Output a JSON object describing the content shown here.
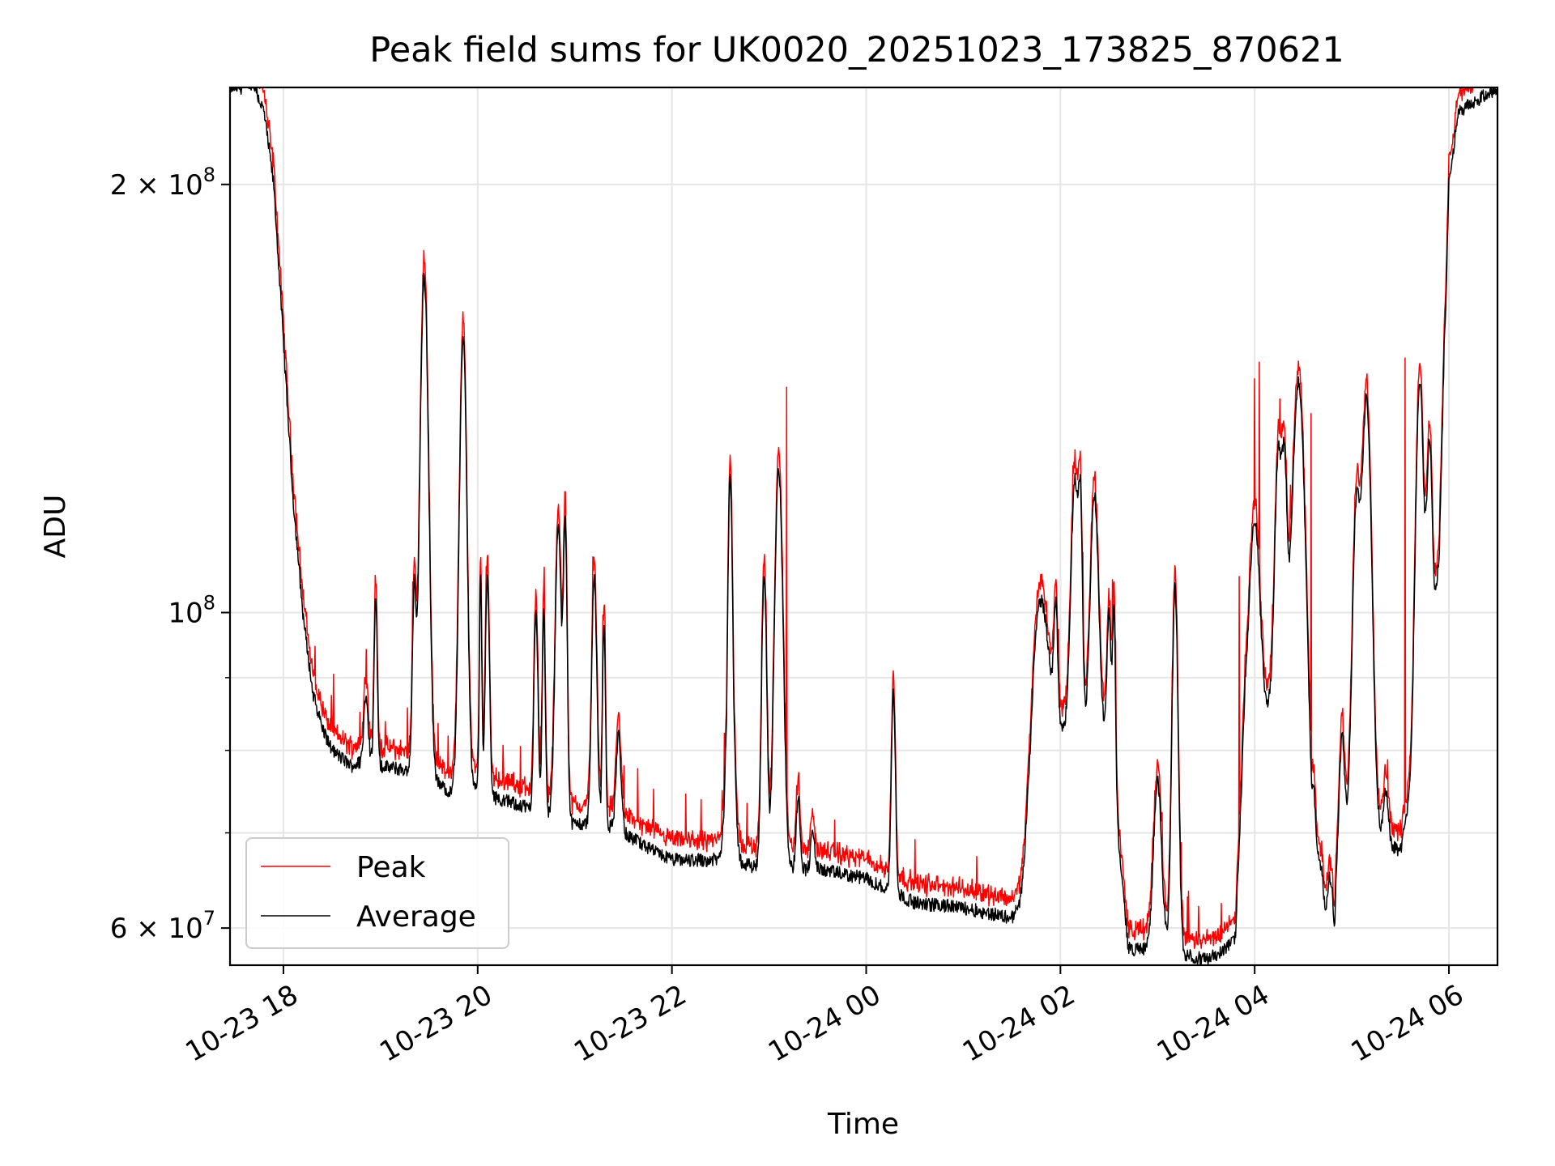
{
  "chart_data": {
    "type": "line",
    "title": "Peak field sums for UK0020_20251023_173825_870621",
    "xlabel": "Time",
    "ylabel": "ADU",
    "yscale": "log",
    "ylim": [
      56500000,
      234000000
    ],
    "xlim_hours": [
      -0.55,
      12.5
    ],
    "x_ticks": [
      {
        "h": 0,
        "label": "10-23 18"
      },
      {
        "h": 2,
        "label": "10-23 20"
      },
      {
        "h": 4,
        "label": "10-23 22"
      },
      {
        "h": 6,
        "label": "10-24 00"
      },
      {
        "h": 8,
        "label": "10-24 02"
      },
      {
        "h": 10,
        "label": "10-24 04"
      },
      {
        "h": 12,
        "label": "10-24 06"
      }
    ],
    "y_ticks_major": [
      {
        "v": 200000000,
        "mantissa": "2",
        "base": "10",
        "exp": "8"
      },
      {
        "v": 100000000,
        "mantissa": "",
        "base": "10",
        "exp": "8"
      },
      {
        "v": 60000000,
        "mantissa": "6",
        "base": "10",
        "exp": "7"
      }
    ],
    "y_ticks_minor": [
      70000000,
      80000000,
      90000000
    ],
    "grid": true,
    "legend_position": "lower-left",
    "series": [
      {
        "name": "Peak",
        "color": "#ff0000",
        "offset_ratio": 1.022
      },
      {
        "name": "Average",
        "color": "#000000",
        "offset_ratio": 1.0
      }
    ],
    "baseline_keypoints": [
      [
        -0.55,
        234
      ],
      [
        -0.3,
        234
      ],
      [
        -0.2,
        225
      ],
      [
        -0.1,
        200
      ],
      [
        0,
        155
      ],
      [
        0.1,
        120
      ],
      [
        0.2,
        100
      ],
      [
        0.3,
        88
      ],
      [
        0.4,
        83
      ],
      [
        0.5,
        80
      ],
      [
        0.6,
        79
      ],
      [
        0.7,
        78
      ],
      [
        0.8,
        78.5
      ],
      [
        0.9,
        79
      ],
      [
        1.0,
        78
      ],
      [
        1.5,
        77
      ],
      [
        1.55,
        76
      ],
      [
        1.7,
        75
      ],
      [
        1.8,
        75.5
      ],
      [
        2.0,
        75
      ],
      [
        2.2,
        74
      ],
      [
        2.5,
        73
      ],
      [
        2.8,
        72
      ],
      [
        3.0,
        71
      ],
      [
        3.3,
        71
      ],
      [
        3.5,
        70
      ],
      [
        3.8,
        68
      ],
      [
        4.0,
        67
      ],
      [
        4.5,
        67
      ],
      [
        5.0,
        66
      ],
      [
        5.5,
        66
      ],
      [
        6.0,
        65
      ],
      [
        6.5,
        62.5
      ],
      [
        7.0,
        62
      ],
      [
        7.5,
        61
      ],
      [
        7.6,
        62
      ],
      [
        7.7,
        68
      ],
      [
        7.8,
        80
      ],
      [
        8.0,
        82
      ],
      [
        8.5,
        82
      ],
      [
        8.7,
        58
      ],
      [
        9.0,
        58
      ],
      [
        9.5,
        57
      ],
      [
        9.7,
        58
      ],
      [
        9.8,
        59
      ],
      [
        9.9,
        85
      ],
      [
        10.5,
        85
      ],
      [
        10.6,
        68
      ],
      [
        10.8,
        64
      ],
      [
        11.0,
        72
      ],
      [
        11.2,
        70
      ],
      [
        11.5,
        68
      ],
      [
        11.7,
        80
      ],
      [
        11.9,
        110
      ],
      [
        12.0,
        200
      ],
      [
        12.1,
        225
      ],
      [
        12.5,
        234
      ]
    ],
    "peaks": [
      [
        0.95,
        0.015,
        103
      ],
      [
        0.85,
        0.02,
        88
      ],
      [
        1.45,
        0.04,
        172
      ],
      [
        1.35,
        0.02,
        106
      ],
      [
        1.85,
        0.035,
        156
      ],
      [
        2.03,
        0.012,
        106
      ],
      [
        2.1,
        0.02,
        106
      ],
      [
        2.6,
        0.02,
        100
      ],
      [
        2.68,
        0.015,
        100
      ],
      [
        2.83,
        0.03,
        115
      ],
      [
        2.9,
        0.02,
        117
      ],
      [
        3.2,
        0.025,
        106
      ],
      [
        3.3,
        0.015,
        98
      ],
      [
        3.45,
        0.025,
        82
      ],
      [
        4.6,
        0.025,
        125
      ],
      [
        4.6,
        0.04,
        84
      ],
      [
        5.1,
        0.04,
        126
      ],
      [
        4.95,
        0.025,
        107
      ],
      [
        5.3,
        0.02,
        74
      ],
      [
        5.45,
        0.02,
        70
      ],
      [
        6.28,
        0.02,
        88
      ],
      [
        7.8,
        0.08,
        102
      ],
      [
        7.95,
        0.02,
        102
      ],
      [
        8.15,
        0.04,
        124
      ],
      [
        8.2,
        0.02,
        125
      ],
      [
        8.35,
        0.04,
        121
      ],
      [
        8.5,
        0.02,
        100
      ],
      [
        8.55,
        0.015,
        102
      ],
      [
        9.0,
        0.04,
        76
      ],
      [
        9.18,
        0.03,
        104
      ],
      [
        10.0,
        0.05,
        116
      ],
      [
        10.05,
        0.02,
        82
      ],
      [
        10.25,
        0.04,
        131
      ],
      [
        10.3,
        0.03,
        131
      ],
      [
        10.45,
        0.06,
        145
      ],
      [
        10.6,
        0.02,
        76
      ],
      [
        10.75,
        0.025,
        66
      ],
      [
        10.9,
        0.025,
        82
      ],
      [
        11.05,
        0.04,
        118
      ],
      [
        11.15,
        0.05,
        142
      ],
      [
        11.35,
        0.025,
        75
      ],
      [
        11.7,
        0.04,
        146
      ],
      [
        11.8,
        0.03,
        132
      ],
      [
        11.98,
        0.02,
        160
      ]
    ],
    "dips": [
      [
        10.73,
        0.02,
        62
      ],
      [
        11.86,
        0.015,
        104
      ],
      [
        10.82,
        0.01,
        60
      ]
    ],
    "peak_only_spikes": [
      [
        5.18,
        144
      ],
      [
        9.84,
        106
      ],
      [
        10.0,
        146
      ],
      [
        10.05,
        150
      ],
      [
        10.58,
        138
      ],
      [
        11.55,
        151
      ]
    ]
  }
}
